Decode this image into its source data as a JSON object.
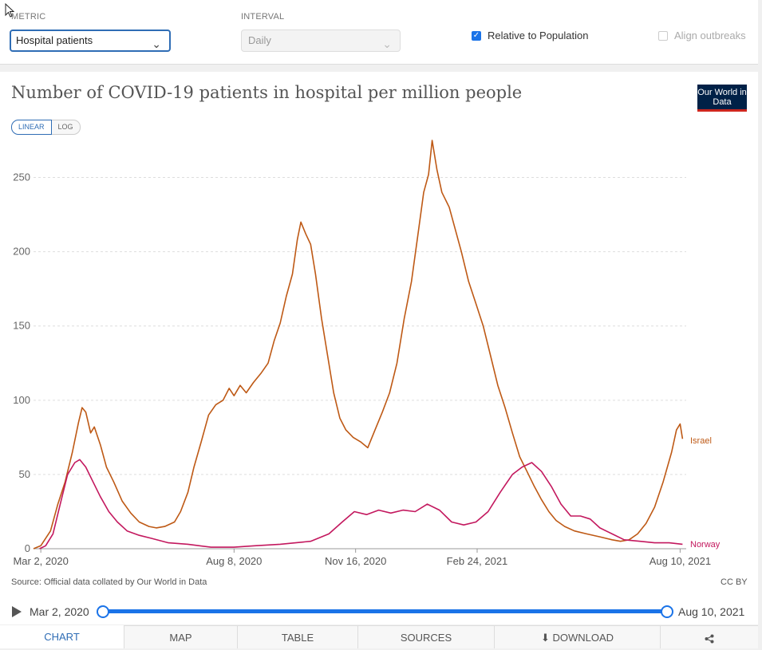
{
  "controls": {
    "metric": {
      "label": "METRIC",
      "value": "Hospital patients"
    },
    "interval": {
      "label": "INTERVAL",
      "value": "Daily"
    },
    "relative": {
      "label": "Relative to Population",
      "checked": true
    },
    "align": {
      "label": "Align outbreaks",
      "checked": false
    }
  },
  "chart": {
    "title": "Number of COVID-19 patients in hospital per million people",
    "logo": "Our World in Data",
    "scale": {
      "linear": "LINEAR",
      "log": "LOG",
      "selected": "linear"
    },
    "source": "Source: Official data collated by Our World in Data",
    "license": "CC BY"
  },
  "timeline": {
    "start": "Mar 2, 2020",
    "end": "Aug 10, 2021"
  },
  "tabs": [
    "CHART",
    "MAP",
    "TABLE",
    "SOURCES",
    "DOWNLOAD",
    "share-icon"
  ],
  "colors": {
    "israel": "#be5915",
    "norway": "#c3185e",
    "accent": "#1a73e8",
    "logo_bg": "#002147",
    "logo_bar": "#ce261e"
  },
  "chart_data": {
    "type": "line",
    "title": "Number of COVID-19 patients in hospital per million people",
    "xlabel": "",
    "ylabel": "",
    "x_ticks": [
      "Mar 2, 2020",
      "Aug 8, 2020",
      "Nov 16, 2020",
      "Feb 24, 2021",
      "Aug 10, 2021"
    ],
    "x_range": [
      "2020-02-25",
      "2021-08-15"
    ],
    "ylim": [
      0,
      275
    ],
    "y_ticks": [
      0,
      50,
      100,
      150,
      200,
      250
    ],
    "grid": "horizontal dashed",
    "legend": "inline labels at line ends",
    "series": [
      {
        "name": "Israel",
        "color": "#be5915",
        "points": [
          [
            "2020-02-25",
            0
          ],
          [
            "2020-03-02",
            2
          ],
          [
            "2020-03-10",
            12
          ],
          [
            "2020-03-16",
            30
          ],
          [
            "2020-03-22",
            45
          ],
          [
            "2020-03-28",
            65
          ],
          [
            "2020-04-02",
            85
          ],
          [
            "2020-04-05",
            95
          ],
          [
            "2020-04-08",
            92
          ],
          [
            "2020-04-12",
            78
          ],
          [
            "2020-04-15",
            82
          ],
          [
            "2020-04-20",
            70
          ],
          [
            "2020-04-25",
            55
          ],
          [
            "2020-05-01",
            45
          ],
          [
            "2020-05-08",
            32
          ],
          [
            "2020-05-15",
            24
          ],
          [
            "2020-05-22",
            18
          ],
          [
            "2020-05-30",
            15
          ],
          [
            "2020-06-05",
            14
          ],
          [
            "2020-06-12",
            15
          ],
          [
            "2020-06-20",
            18
          ],
          [
            "2020-06-25",
            25
          ],
          [
            "2020-07-01",
            38
          ],
          [
            "2020-07-06",
            55
          ],
          [
            "2020-07-12",
            72
          ],
          [
            "2020-07-18",
            90
          ],
          [
            "2020-07-24",
            97
          ],
          [
            "2020-07-30",
            100
          ],
          [
            "2020-08-04",
            108
          ],
          [
            "2020-08-08",
            103
          ],
          [
            "2020-08-13",
            110
          ],
          [
            "2020-08-18",
            105
          ],
          [
            "2020-08-24",
            112
          ],
          [
            "2020-08-30",
            118
          ],
          [
            "2020-09-05",
            125
          ],
          [
            "2020-09-10",
            140
          ],
          [
            "2020-09-15",
            152
          ],
          [
            "2020-09-20",
            170
          ],
          [
            "2020-09-25",
            185
          ],
          [
            "2020-09-29",
            208
          ],
          [
            "2020-10-02",
            220
          ],
          [
            "2020-10-06",
            212
          ],
          [
            "2020-10-10",
            205
          ],
          [
            "2020-10-14",
            185
          ],
          [
            "2020-10-19",
            155
          ],
          [
            "2020-10-24",
            130
          ],
          [
            "2020-10-29",
            105
          ],
          [
            "2020-11-03",
            88
          ],
          [
            "2020-11-08",
            80
          ],
          [
            "2020-11-14",
            75
          ],
          [
            "2020-11-20",
            72
          ],
          [
            "2020-11-26",
            68
          ],
          [
            "2020-12-02",
            80
          ],
          [
            "2020-12-08",
            92
          ],
          [
            "2020-12-14",
            105
          ],
          [
            "2020-12-20",
            125
          ],
          [
            "2020-12-26",
            155
          ],
          [
            "2021-01-01",
            180
          ],
          [
            "2021-01-06",
            210
          ],
          [
            "2021-01-11",
            240
          ],
          [
            "2021-01-15",
            252
          ],
          [
            "2021-01-18",
            275
          ],
          [
            "2021-01-22",
            255
          ],
          [
            "2021-01-26",
            240
          ],
          [
            "2021-02-01",
            230
          ],
          [
            "2021-02-06",
            215
          ],
          [
            "2021-02-11",
            200
          ],
          [
            "2021-02-17",
            180
          ],
          [
            "2021-02-23",
            165
          ],
          [
            "2021-03-01",
            150
          ],
          [
            "2021-03-07",
            130
          ],
          [
            "2021-03-13",
            110
          ],
          [
            "2021-03-19",
            95
          ],
          [
            "2021-03-25",
            78
          ],
          [
            "2021-03-31",
            62
          ],
          [
            "2021-04-06",
            52
          ],
          [
            "2021-04-12",
            42
          ],
          [
            "2021-04-18",
            33
          ],
          [
            "2021-04-24",
            25
          ],
          [
            "2021-04-30",
            19
          ],
          [
            "2021-05-07",
            15
          ],
          [
            "2021-05-15",
            12
          ],
          [
            "2021-05-25",
            10
          ],
          [
            "2021-06-05",
            8
          ],
          [
            "2021-06-15",
            6
          ],
          [
            "2021-06-22",
            5
          ],
          [
            "2021-06-29",
            6
          ],
          [
            "2021-07-06",
            10
          ],
          [
            "2021-07-13",
            17
          ],
          [
            "2021-07-20",
            28
          ],
          [
            "2021-07-27",
            45
          ],
          [
            "2021-08-03",
            65
          ],
          [
            "2021-08-07",
            80
          ],
          [
            "2021-08-10",
            84
          ],
          [
            "2021-08-12",
            74
          ]
        ]
      },
      {
        "name": "Norway",
        "color": "#c3185e",
        "points": [
          [
            "2020-03-01",
            0
          ],
          [
            "2020-03-06",
            2
          ],
          [
            "2020-03-12",
            10
          ],
          [
            "2020-03-18",
            30
          ],
          [
            "2020-03-24",
            50
          ],
          [
            "2020-03-30",
            58
          ],
          [
            "2020-04-03",
            60
          ],
          [
            "2020-04-08",
            55
          ],
          [
            "2020-04-14",
            45
          ],
          [
            "2020-04-20",
            35
          ],
          [
            "2020-04-27",
            25
          ],
          [
            "2020-05-04",
            18
          ],
          [
            "2020-05-12",
            12
          ],
          [
            "2020-05-22",
            9
          ],
          [
            "2020-06-01",
            7
          ],
          [
            "2020-06-15",
            4
          ],
          [
            "2020-07-01",
            3
          ],
          [
            "2020-07-20",
            1
          ],
          [
            "2020-08-08",
            1
          ],
          [
            "2020-08-25",
            2
          ],
          [
            "2020-09-15",
            3
          ],
          [
            "2020-10-10",
            5
          ],
          [
            "2020-10-25",
            10
          ],
          [
            "2020-11-05",
            18
          ],
          [
            "2020-11-15",
            25
          ],
          [
            "2020-11-25",
            23
          ],
          [
            "2020-12-05",
            26
          ],
          [
            "2020-12-15",
            24
          ],
          [
            "2020-12-25",
            26
          ],
          [
            "2021-01-04",
            25
          ],
          [
            "2021-01-14",
            30
          ],
          [
            "2021-01-24",
            26
          ],
          [
            "2021-02-03",
            18
          ],
          [
            "2021-02-13",
            16
          ],
          [
            "2021-02-23",
            18
          ],
          [
            "2021-03-05",
            25
          ],
          [
            "2021-03-15",
            38
          ],
          [
            "2021-03-25",
            50
          ],
          [
            "2021-04-02",
            55
          ],
          [
            "2021-04-10",
            58
          ],
          [
            "2021-04-18",
            52
          ],
          [
            "2021-04-26",
            42
          ],
          [
            "2021-05-04",
            30
          ],
          [
            "2021-05-12",
            22
          ],
          [
            "2021-05-20",
            22
          ],
          [
            "2021-05-28",
            20
          ],
          [
            "2021-06-05",
            14
          ],
          [
            "2021-06-15",
            10
          ],
          [
            "2021-06-25",
            6
          ],
          [
            "2021-07-08",
            5
          ],
          [
            "2021-07-20",
            4
          ],
          [
            "2021-08-01",
            4
          ],
          [
            "2021-08-12",
            3
          ]
        ]
      }
    ]
  }
}
